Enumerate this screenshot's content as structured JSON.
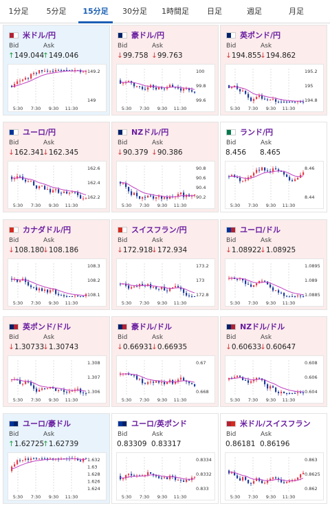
{
  "tabs": [
    {
      "label": "1分足",
      "active": false
    },
    {
      "label": "5分足",
      "active": false
    },
    {
      "label": "15分足",
      "active": true
    },
    {
      "label": "30分足",
      "active": false
    },
    {
      "label": "1時間足",
      "active": false
    },
    {
      "label": "日足",
      "active": false
    },
    {
      "label": "週足",
      "active": false
    },
    {
      "label": "月足",
      "active": false
    }
  ],
  "labels": {
    "bid": "Bid",
    "ask": "Ask"
  },
  "cards": [
    {
      "name": "米ドル/円",
      "flag": [
        "#b22234",
        "#ffffff"
      ],
      "state": "up",
      "bid_dir": "↑",
      "bid": "149.044",
      "ask_dir": "↑",
      "ask": "149.046",
      "yticks": [
        "149.2",
        "149"
      ],
      "xticks": [
        "5:30",
        "7:30",
        "9:30",
        "11:30"
      ]
    },
    {
      "name": "豪ドル/円",
      "flag": [
        "#012169",
        "#ffffff"
      ],
      "state": "down",
      "bid_dir": "↓",
      "bid": "99.758",
      "ask_dir": "↓",
      "ask": "99.763",
      "yticks": [
        "100",
        "99.8",
        "99.6"
      ],
      "xticks": [
        "5:30",
        "7:30",
        "9:30",
        "11:30"
      ]
    },
    {
      "name": "英ポンド/円",
      "flag": [
        "#012169",
        "#ffffff"
      ],
      "state": "down",
      "bid_dir": "↓",
      "bid": "194.855",
      "ask_dir": "↓",
      "ask": "194.862",
      "yticks": [
        "195.2",
        "195",
        "194.8"
      ],
      "xticks": [
        "5:30",
        "7:30",
        "9:30",
        "11:30"
      ]
    },
    {
      "name": "ユーロ/円",
      "flag": [
        "#003399",
        "#ffffff"
      ],
      "state": "down",
      "bid_dir": "↓",
      "bid": "162.341",
      "ask_dir": "↓",
      "ask": "162.345",
      "yticks": [
        "162.6",
        "162.4",
        "162.2"
      ],
      "xticks": [
        "5:30",
        "7:30",
        "9:30",
        "11:30"
      ]
    },
    {
      "name": "NZドル/円",
      "flag": [
        "#012169",
        "#ffffff"
      ],
      "state": "down",
      "bid_dir": "↓",
      "bid": "90.379",
      "ask_dir": "↓",
      "ask": "90.386",
      "yticks": [
        "90.8",
        "90.6",
        "90.4",
        "90.2"
      ],
      "xticks": [
        "5:30",
        "7:30",
        "9:30",
        "11:30"
      ]
    },
    {
      "name": "ランド/円",
      "flag": [
        "#007a4d",
        "#ffffff"
      ],
      "state": "flat",
      "bid_dir": "",
      "bid": "8.456",
      "ask_dir": "",
      "ask": "8.465",
      "yticks": [
        "8.46",
        "8.44"
      ],
      "xticks": [
        "5:30",
        "7:30",
        "9:30",
        "11:30"
      ]
    },
    {
      "name": "カナダドル/円",
      "flag": [
        "#d52b1e",
        "#ffffff"
      ],
      "state": "down",
      "bid_dir": "↓",
      "bid": "108.180",
      "ask_dir": "↓",
      "ask": "108.186",
      "yticks": [
        "108.3",
        "108.2",
        "108.1"
      ],
      "xticks": [
        "5:30",
        "7:30",
        "9:30",
        "11:30"
      ]
    },
    {
      "name": "スイスフラン/円",
      "flag": [
        "#d52b1e",
        "#ffffff"
      ],
      "state": "down",
      "bid_dir": "↓",
      "bid": "172.918",
      "ask_dir": "↓",
      "ask": "172.934",
      "yticks": [
        "173.2",
        "173",
        "172.8"
      ],
      "xticks": [
        "5:30",
        "7:30",
        "9:30",
        "11:30"
      ]
    },
    {
      "name": "ユーロ/ドル",
      "flag": [
        "#003399",
        "#b22234"
      ],
      "state": "down",
      "bid_dir": "↓",
      "bid": "1.08922",
      "ask_dir": "↓",
      "ask": "1.08925",
      "yticks": [
        "1.0895",
        "1.089",
        "1.0885"
      ],
      "xticks": [
        "5:30",
        "7:30",
        "9:30",
        "11:30"
      ]
    },
    {
      "name": "英ポンド/ドル",
      "flag": [
        "#012169",
        "#b22234"
      ],
      "state": "down",
      "bid_dir": "↓",
      "bid": "1.30733",
      "ask_dir": "↓",
      "ask": "1.30743",
      "yticks": [
        "1.308",
        "1.307",
        "1.306"
      ],
      "xticks": [
        "5:30",
        "7:30",
        "9:30",
        "11:30"
      ]
    },
    {
      "name": "豪ドル/ドル",
      "flag": [
        "#012169",
        "#b22234"
      ],
      "state": "down",
      "bid_dir": "↓",
      "bid": "0.66931",
      "ask_dir": "↓",
      "ask": "0.66935",
      "yticks": [
        "0.67",
        "0.668"
      ],
      "xticks": [
        "5:30",
        "7:30",
        "9:30",
        "11:30"
      ]
    },
    {
      "name": "NZドル/ドル",
      "flag": [
        "#012169",
        "#b22234"
      ],
      "state": "down",
      "bid_dir": "↓",
      "bid": "0.60633",
      "ask_dir": "↓",
      "ask": "0.60647",
      "yticks": [
        "0.608",
        "0.606",
        "0.604"
      ],
      "xticks": [
        "5:30",
        "7:30",
        "9:30",
        "11:30"
      ]
    },
    {
      "name": "ユーロ/豪ドル",
      "flag": [
        "#003399",
        "#012169"
      ],
      "state": "up",
      "bid_dir": "↑",
      "bid": "1.62725",
      "ask_dir": "↑",
      "ask": "1.62739",
      "yticks": [
        "1.632",
        "1.63",
        "1.628",
        "1.626",
        "1.624"
      ],
      "xticks": [
        "5:30",
        "7:30",
        "9:30",
        "11:30"
      ]
    },
    {
      "name": "ユーロ/英ポンド",
      "flag": [
        "#003399",
        "#012169"
      ],
      "state": "flat",
      "bid_dir": "",
      "bid": "0.83309",
      "ask_dir": "",
      "ask": "0.83317",
      "yticks": [
        "0.8334",
        "0.8332",
        "0.833"
      ],
      "xticks": [
        "5:30",
        "7:30",
        "9:30",
        "11:30"
      ]
    },
    {
      "name": "米ドル/スイスフラン",
      "flag": [
        "#b22234",
        "#d52b1e"
      ],
      "state": "flat",
      "bid_dir": "",
      "bid": "0.86181",
      "ask_dir": "",
      "ask": "0.86196",
      "yticks": [
        "0.863",
        "0.8625",
        "0.862"
      ],
      "xticks": [
        "5:30",
        "7:30",
        "9:30",
        "11:30"
      ]
    }
  ]
}
